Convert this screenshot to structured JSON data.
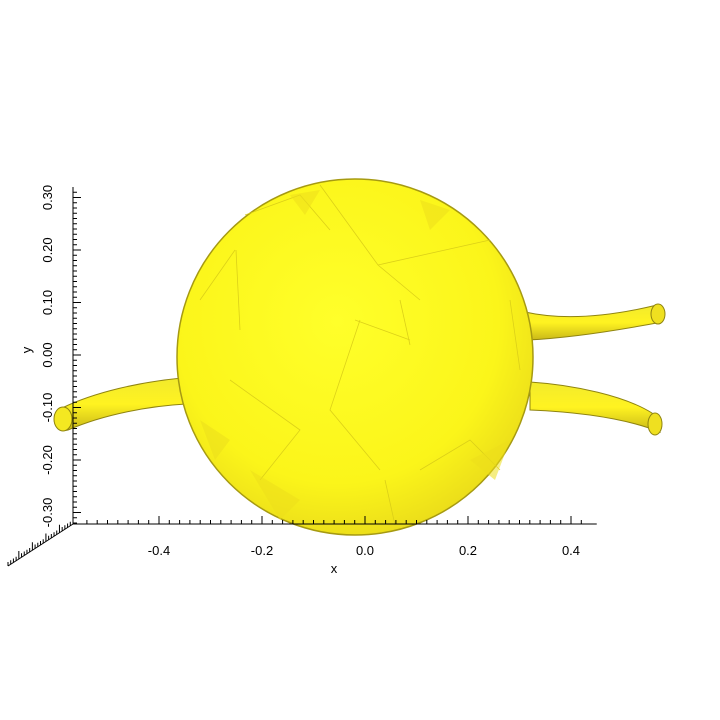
{
  "figure": {
    "type": "3d-isosurface",
    "colors": {
      "surface": "#ffff00",
      "surface_shade": "#e6de12",
      "surface_edge": "#9a8f10",
      "axis": "#000000",
      "background": "#ffffff"
    }
  },
  "axes": {
    "x": {
      "label": "x",
      "range": [
        -0.55,
        0.45
      ],
      "ticks": [
        "-0.4",
        "-0.2",
        "0.0",
        "0.2",
        "0.4"
      ],
      "tick_values": [
        -0.4,
        -0.2,
        0.0,
        0.2,
        0.4
      ]
    },
    "y": {
      "label": "y",
      "range": [
        -0.32,
        0.32
      ],
      "ticks": [
        "-0.30",
        "-0.20",
        "-0.10",
        "0.00",
        "0.10",
        "0.20",
        "0.30"
      ],
      "tick_values": [
        -0.3,
        -0.2,
        -0.1,
        0.0,
        0.1,
        0.2,
        0.3
      ]
    },
    "z": {
      "label": "",
      "ticks": []
    }
  }
}
